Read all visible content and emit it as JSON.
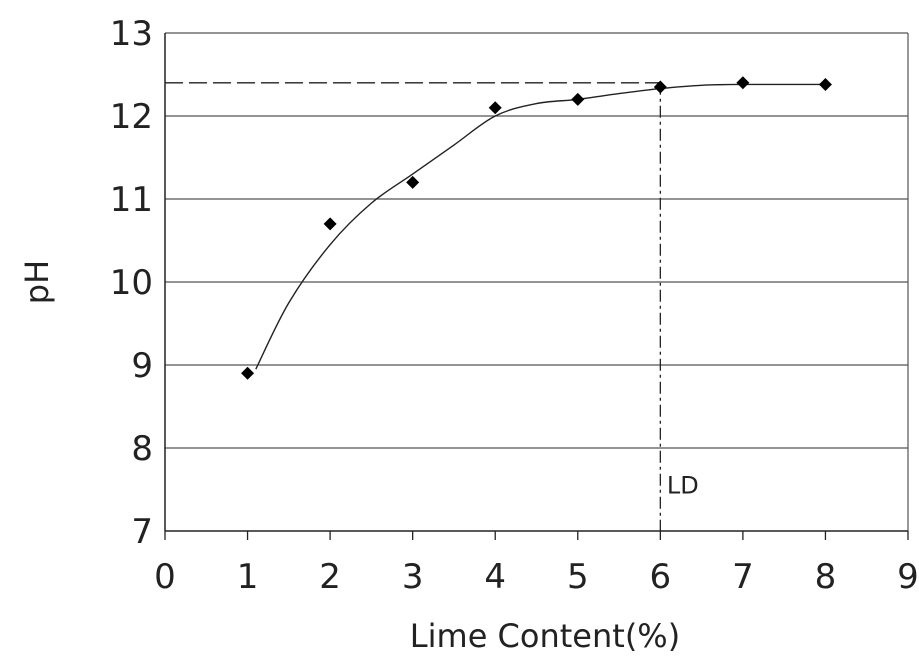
{
  "chart_data": {
    "type": "scatter",
    "title": "",
    "xlabel": "Lime Content(%)",
    "ylabel": "pH",
    "xlim": [
      0,
      9
    ],
    "ylim": [
      7,
      13
    ],
    "x_ticks": [
      0,
      1,
      2,
      3,
      4,
      5,
      6,
      7,
      8,
      9
    ],
    "y_ticks": [
      7,
      8,
      9,
      10,
      11,
      12,
      13
    ],
    "grid": "horizontal",
    "series": [
      {
        "marker": "diamond",
        "points": [
          {
            "x": 1,
            "y": 8.9
          },
          {
            "x": 2,
            "y": 10.7
          },
          {
            "x": 3,
            "y": 11.2
          },
          {
            "x": 4,
            "y": 12.1
          },
          {
            "x": 5,
            "y": 12.2
          },
          {
            "x": 6,
            "y": 12.35
          },
          {
            "x": 7,
            "y": 12.4
          },
          {
            "x": 8,
            "y": 12.38
          }
        ]
      }
    ],
    "fit_curve": [
      [
        1.1,
        8.95
      ],
      [
        1.5,
        9.75
      ],
      [
        2.0,
        10.45
      ],
      [
        2.5,
        10.95
      ],
      [
        3.0,
        11.3
      ],
      [
        3.5,
        11.65
      ],
      [
        4.0,
        12.0
      ],
      [
        4.5,
        12.15
      ],
      [
        5.0,
        12.2
      ],
      [
        5.5,
        12.27
      ],
      [
        6.0,
        12.33
      ],
      [
        6.5,
        12.37
      ],
      [
        7.0,
        12.38
      ],
      [
        8.0,
        12.38
      ]
    ],
    "reference_lines": {
      "horizontal_y": 12.4,
      "vertical_x": 6
    },
    "annotations": [
      {
        "text": "LD",
        "x": 6.2,
        "y": 7.55
      }
    ],
    "colors": {
      "line": "#222222",
      "grid": "#555555",
      "marker": "#000000"
    }
  }
}
